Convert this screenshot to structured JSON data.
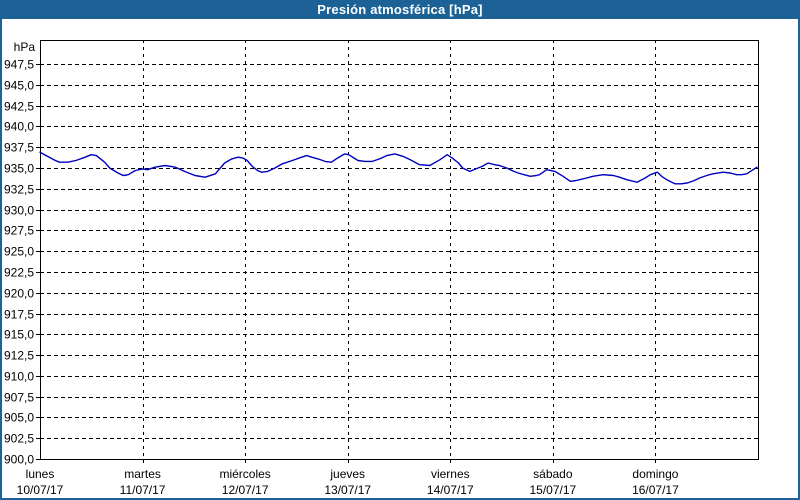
{
  "title_bar": {
    "text": "Presión atmosférica [hPa]"
  },
  "colors": {
    "titlebar_bg": "#1c6296",
    "outer_border": "#1c6296",
    "line": "#0000bf",
    "grid": "#000000",
    "axis": "#000000",
    "plot_bg": "#ffffff",
    "title_text": "#ffffff"
  },
  "chart_data": {
    "type": "line",
    "title": "Presión atmosférica [hPa]",
    "ylabel": "hPa",
    "xlabel": "",
    "ylim": [
      900,
      950.4
    ],
    "y_tick_step": 2.5,
    "grid": "dashed",
    "legend": "none",
    "y_tick_values": [
      947.5,
      945.0,
      942.5,
      940.0,
      937.5,
      935.0,
      932.5,
      930.0,
      927.5,
      925.0,
      922.5,
      920.0,
      917.5,
      915.0,
      912.5,
      910.0,
      907.5,
      905.0,
      902.5,
      900.0
    ],
    "y_tick_labels": [
      "947,5",
      "945,0",
      "942,5",
      "940,0",
      "937,5",
      "935,0",
      "932,5",
      "930,0",
      "927,5",
      "925,0",
      "922,5",
      "920,0",
      "917,5",
      "915,0",
      "912,5",
      "910,0",
      "907,5",
      "905,0",
      "902,5",
      "900,0"
    ],
    "x_days": [
      {
        "name": "lunes",
        "date": "10/07/17"
      },
      {
        "name": "martes",
        "date": "11/07/17"
      },
      {
        "name": "miércoles",
        "date": "12/07/17"
      },
      {
        "name": "jueves",
        "date": "13/07/17"
      },
      {
        "name": "viernes",
        "date": "14/07/17"
      },
      {
        "name": "sábado",
        "date": "15/07/17"
      },
      {
        "name": "domingo",
        "date": "16/07/17"
      }
    ],
    "xlim_days": [
      0,
      7
    ],
    "series": [
      {
        "name": "Presión atmosférica",
        "unit": "hPa",
        "points": [
          [
            0.0,
            936.9
          ],
          [
            0.06,
            936.5
          ],
          [
            0.15,
            935.9
          ],
          [
            0.19,
            935.7
          ],
          [
            0.27,
            935.7
          ],
          [
            0.35,
            935.9
          ],
          [
            0.44,
            936.3
          ],
          [
            0.5,
            936.6
          ],
          [
            0.55,
            936.5
          ],
          [
            0.63,
            935.7
          ],
          [
            0.68,
            935.0
          ],
          [
            0.76,
            934.4
          ],
          [
            0.81,
            934.1
          ],
          [
            0.86,
            934.2
          ],
          [
            0.93,
            934.7
          ],
          [
            1.0,
            934.9
          ],
          [
            1.05,
            934.8
          ],
          [
            1.12,
            935.1
          ],
          [
            1.22,
            935.3
          ],
          [
            1.32,
            935.1
          ],
          [
            1.41,
            934.6
          ],
          [
            1.51,
            934.1
          ],
          [
            1.61,
            933.9
          ],
          [
            1.71,
            934.3
          ],
          [
            1.8,
            935.6
          ],
          [
            1.87,
            936.1
          ],
          [
            1.93,
            936.3
          ],
          [
            1.98,
            936.2
          ],
          [
            2.02,
            935.9
          ],
          [
            2.07,
            935.2
          ],
          [
            2.12,
            934.7
          ],
          [
            2.16,
            934.5
          ],
          [
            2.22,
            934.6
          ],
          [
            2.29,
            935.0
          ],
          [
            2.36,
            935.5
          ],
          [
            2.46,
            935.9
          ],
          [
            2.55,
            936.3
          ],
          [
            2.6,
            936.5
          ],
          [
            2.65,
            936.3
          ],
          [
            2.71,
            936.1
          ],
          [
            2.78,
            935.8
          ],
          [
            2.84,
            935.7
          ],
          [
            2.9,
            936.2
          ],
          [
            2.97,
            936.7
          ],
          [
            3.01,
            936.6
          ],
          [
            3.1,
            935.9
          ],
          [
            3.17,
            935.8
          ],
          [
            3.24,
            935.8
          ],
          [
            3.31,
            936.1
          ],
          [
            3.38,
            936.5
          ],
          [
            3.46,
            936.7
          ],
          [
            3.54,
            936.4
          ],
          [
            3.61,
            936.0
          ],
          [
            3.7,
            935.4
          ],
          [
            3.8,
            935.3
          ],
          [
            3.9,
            936.0
          ],
          [
            3.97,
            936.6
          ],
          [
            4.02,
            936.2
          ],
          [
            4.08,
            935.6
          ],
          [
            4.12,
            935.0
          ],
          [
            4.19,
            934.6
          ],
          [
            4.25,
            934.9
          ],
          [
            4.31,
            935.2
          ],
          [
            4.37,
            935.6
          ],
          [
            4.43,
            935.4
          ],
          [
            4.48,
            935.3
          ],
          [
            4.55,
            935.0
          ],
          [
            4.6,
            934.7
          ],
          [
            4.66,
            934.4
          ],
          [
            4.72,
            934.2
          ],
          [
            4.78,
            934.0
          ],
          [
            4.84,
            934.1
          ],
          [
            4.87,
            934.2
          ],
          [
            4.94,
            934.8
          ],
          [
            5.02,
            934.6
          ],
          [
            5.1,
            934.0
          ],
          [
            5.17,
            933.4
          ],
          [
            5.23,
            933.5
          ],
          [
            5.26,
            933.6
          ],
          [
            5.33,
            933.8
          ],
          [
            5.39,
            934.0
          ],
          [
            5.49,
            934.2
          ],
          [
            5.59,
            934.1
          ],
          [
            5.65,
            933.9
          ],
          [
            5.72,
            933.6
          ],
          [
            5.82,
            933.3
          ],
          [
            5.9,
            933.8
          ],
          [
            5.95,
            934.2
          ],
          [
            6.02,
            934.5
          ],
          [
            6.06,
            934.0
          ],
          [
            6.11,
            933.6
          ],
          [
            6.19,
            933.1
          ],
          [
            6.25,
            933.1
          ],
          [
            6.31,
            933.2
          ],
          [
            6.38,
            933.5
          ],
          [
            6.43,
            933.8
          ],
          [
            6.5,
            934.1
          ],
          [
            6.56,
            934.3
          ],
          [
            6.66,
            934.5
          ],
          [
            6.73,
            934.4
          ],
          [
            6.79,
            934.2
          ],
          [
            6.84,
            934.2
          ],
          [
            6.89,
            934.3
          ],
          [
            6.99,
            935.1
          ]
        ]
      }
    ]
  }
}
